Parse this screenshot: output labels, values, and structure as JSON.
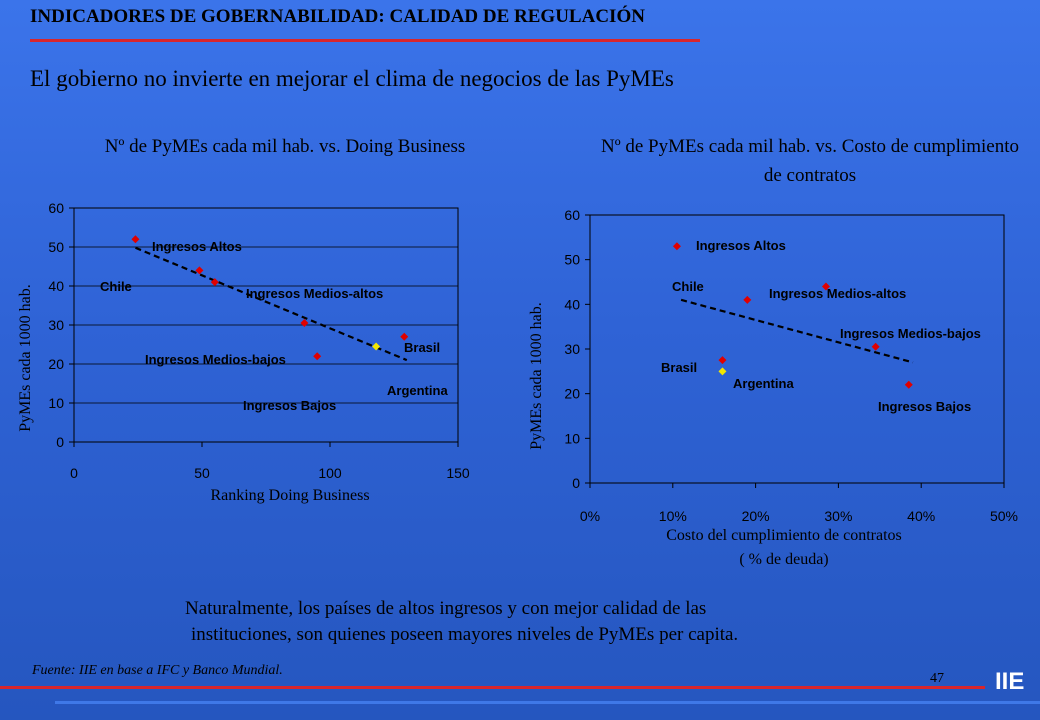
{
  "slide": {
    "title": "INDICADORES DE GOBERNABILIDAD: CALIDAD DE REGULACIÓN",
    "subtitle": "El gobierno no invierte en mejorar el clima de negocios de las PyMEs",
    "conclusion_line1": "Naturalmente, los países de altos ingresos y con mejor calidad de las",
    "conclusion_line2": "instituciones, son quienes poseen mayores niveles de PyMEs per capita.",
    "source": "Fuente: IIE en base a IFC y Banco Mundial.",
    "page_number": "47",
    "logo": "IIE"
  },
  "colors": {
    "background": "#2f63d6",
    "accent_red": "#d8262c",
    "point_red": "#e00000",
    "point_yellow": "#f2e600",
    "trend": "#000000"
  },
  "chart_data": [
    {
      "type": "scatter",
      "title": "Nº de PyMEs cada mil hab. vs. Doing Business",
      "xlabel": "Ranking Doing Business",
      "ylabel": "PyMEs cada 1000 hab.",
      "xlim": [
        0,
        150
      ],
      "ylim": [
        0,
        60
      ],
      "x_ticks": [
        "0",
        "50",
        "100",
        "150"
      ],
      "y_ticks": [
        "0",
        "10",
        "20",
        "30",
        "40",
        "50",
        "60"
      ],
      "grid": "horizontal",
      "points": [
        {
          "label": "Ingresos Altos",
          "x": 24,
          "y": 52,
          "color": "red"
        },
        {
          "label": "Chile",
          "x": 49,
          "y": 44,
          "color": "red"
        },
        {
          "label": "Ingresos Medios-altos",
          "x": 55,
          "y": 41,
          "color": "red"
        },
        {
          "label": "",
          "x": 90,
          "y": 30.5,
          "color": "red"
        },
        {
          "label": "Ingresos Medios-bajos",
          "x": 95,
          "y": 22,
          "color": "red"
        },
        {
          "label": "Argentina",
          "x": 118,
          "y": 24.5,
          "color": "yellow"
        },
        {
          "label": "Brasil",
          "x": 129,
          "y": 27,
          "color": "red"
        }
      ],
      "free_labels": [
        "Ingresos Bajos"
      ],
      "trendline": {
        "x": [
          24,
          130
        ],
        "y": [
          49.8,
          21
        ]
      }
    },
    {
      "type": "scatter",
      "title": "Nº de PyMEs cada mil hab. vs. Costo de cumplimiento de contratos",
      "xlabel": "Costo del cumplimiento de contratos",
      "xlabel2": "( % de deuda)",
      "ylabel": "PyMEs cada 1000 hab.",
      "xlim": [
        0,
        50
      ],
      "ylim": [
        0,
        60
      ],
      "x_ticks": [
        "0%",
        "10%",
        "20%",
        "30%",
        "40%",
        "50%"
      ],
      "y_ticks": [
        "0",
        "10",
        "20",
        "30",
        "40",
        "50",
        "60"
      ],
      "grid": "none",
      "points": [
        {
          "label": "Ingresos Altos",
          "x": 10.5,
          "y": 53,
          "color": "red"
        },
        {
          "label": "Chile",
          "x": 19,
          "y": 41,
          "color": "red"
        },
        {
          "label": "Ingresos Medios-altos",
          "x": 28.5,
          "y": 44,
          "color": "red"
        },
        {
          "label": "Ingresos Medios-bajos",
          "x": 34.5,
          "y": 30.5,
          "color": "red"
        },
        {
          "label": "Ingresos Bajos",
          "x": 38.5,
          "y": 22,
          "color": "red"
        },
        {
          "label": "Brasil",
          "x": 16,
          "y": 27.5,
          "color": "red"
        },
        {
          "label": "Argentina",
          "x": 16,
          "y": 25,
          "color": "yellow"
        }
      ],
      "trendline": {
        "x": [
          11,
          39
        ],
        "y": [
          41,
          27
        ]
      }
    }
  ]
}
